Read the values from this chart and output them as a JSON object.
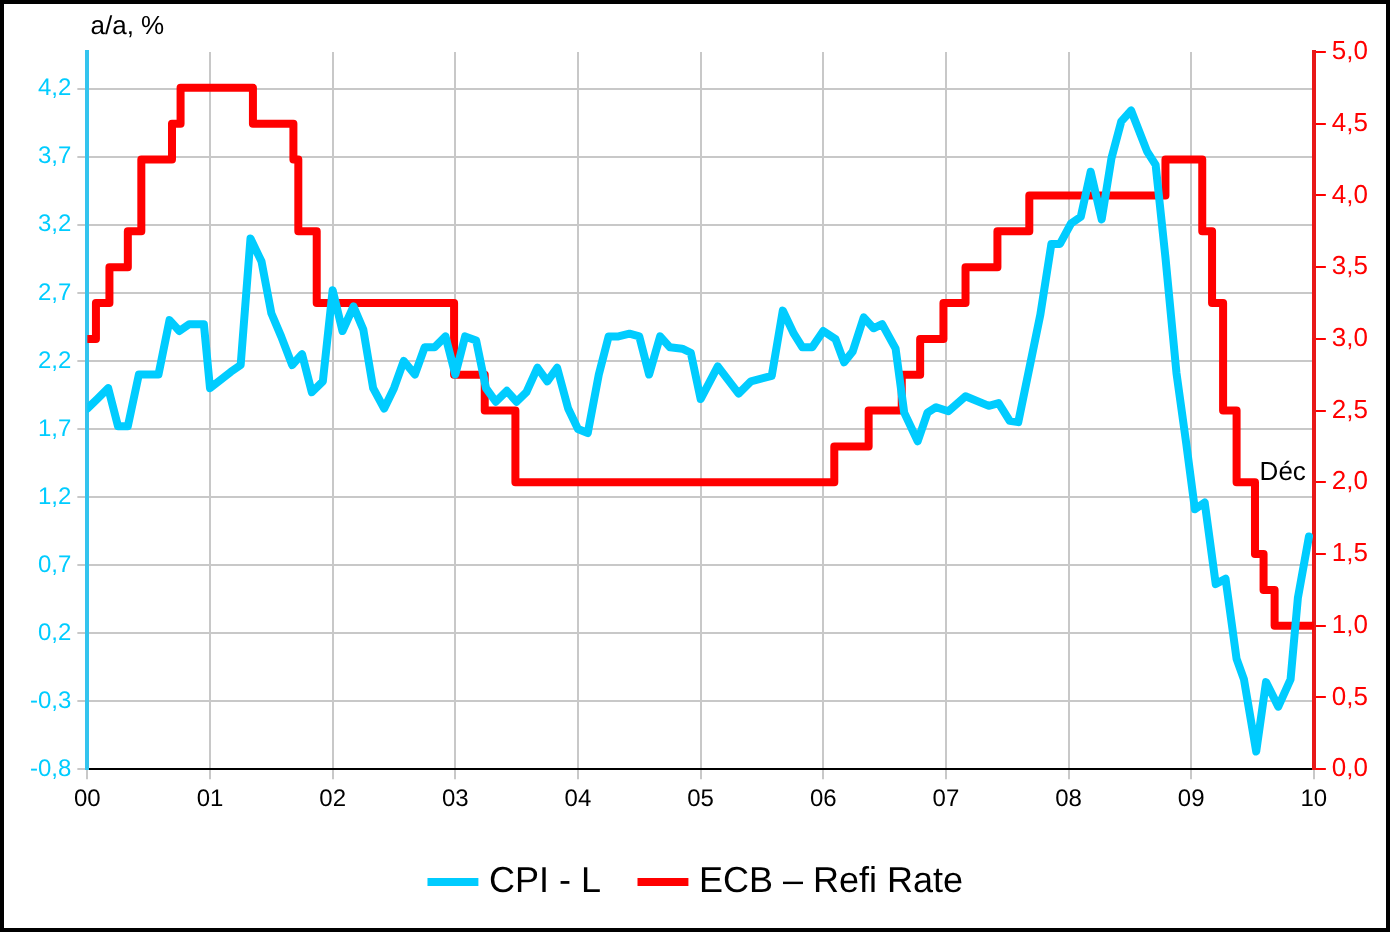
{
  "chart_data": {
    "type": "line",
    "ylabel": "a/a, %",
    "xlim": [
      0,
      10
    ],
    "xticks": [
      {
        "value": 0,
        "label": "00"
      },
      {
        "value": 1,
        "label": "01"
      },
      {
        "value": 2,
        "label": "02"
      },
      {
        "value": 3,
        "label": "03"
      },
      {
        "value": 4,
        "label": "04"
      },
      {
        "value": 5,
        "label": "05"
      },
      {
        "value": 6,
        "label": "06"
      },
      {
        "value": 7,
        "label": "07"
      },
      {
        "value": 8,
        "label": "08"
      },
      {
        "value": 9,
        "label": "09"
      },
      {
        "value": 10,
        "label": "10"
      }
    ],
    "ylim": [
      -0.8,
      4.47
    ],
    "yticks": [
      {
        "value": -0.8,
        "label": "-0,8"
      },
      {
        "value": -0.3,
        "label": "-0,3"
      },
      {
        "value": 0.2,
        "label": "0,2"
      },
      {
        "value": 0.7,
        "label": "0,7"
      },
      {
        "value": 1.2,
        "label": "1,2"
      },
      {
        "value": 1.7,
        "label": "1,7"
      },
      {
        "value": 2.2,
        "label": "2,2"
      },
      {
        "value": 2.7,
        "label": "2,7"
      },
      {
        "value": 3.2,
        "label": "3,2"
      },
      {
        "value": 3.7,
        "label": "3,7"
      },
      {
        "value": 4.2,
        "label": "4,2"
      }
    ],
    "y2lim": [
      0,
      5
    ],
    "y2ticks": [
      {
        "value": 0,
        "label": "0,0"
      },
      {
        "value": 0.5,
        "label": "0,5"
      },
      {
        "value": 1,
        "label": "1,0"
      },
      {
        "value": 1.5,
        "label": "1,5"
      },
      {
        "value": 2,
        "label": "2,0"
      },
      {
        "value": 2.5,
        "label": "2,5"
      },
      {
        "value": 3,
        "label": "3,0"
      },
      {
        "value": 3.5,
        "label": "3,5"
      },
      {
        "value": 4,
        "label": "4,0"
      },
      {
        "value": 4.5,
        "label": "4,5"
      },
      {
        "value": 5,
        "label": "5,0"
      }
    ],
    "grid": true,
    "legend": "bottom",
    "marker": "none",
    "line_style": "solid",
    "annotations": [
      "Déc"
    ],
    "series": [
      {
        "name": "CPI - L",
        "type": "line",
        "color": "#00ccff",
        "x": [
          0,
          0.08,
          0.17,
          0.25,
          0.33,
          0.42,
          0.58,
          0.67,
          0.75,
          0.83,
          0.95,
          1.0,
          1.17,
          1.25,
          1.33,
          1.42,
          1.5,
          1.58,
          1.67,
          1.75,
          1.83,
          1.92,
          2.0,
          2.08,
          2.17,
          2.25,
          2.33,
          2.42,
          2.5,
          2.58,
          2.67,
          2.75,
          2.83,
          2.92,
          3.0,
          3.08,
          3.17,
          3.25,
          3.33,
          3.42,
          3.5,
          3.58,
          3.67,
          3.75,
          3.83,
          3.92,
          4.0,
          4.08,
          4.17,
          4.25,
          4.33,
          4.42,
          4.5,
          4.58,
          4.67,
          4.75,
          4.85,
          4.92,
          5.0,
          5.14,
          5.31,
          5.41,
          5.58,
          5.67,
          5.76,
          5.83,
          5.91,
          6.0,
          6.1,
          6.17,
          6.24,
          6.33,
          6.41,
          6.48,
          6.59,
          6.66,
          6.77,
          6.85,
          6.92,
          7.02,
          7.16,
          7.35,
          7.43,
          7.52,
          7.59,
          7.77,
          7.86,
          7.93,
          8.02,
          8.1,
          8.18,
          8.27,
          8.35,
          8.43,
          8.51,
          8.64,
          8.71,
          8.79,
          8.88,
          8.96,
          9.03,
          9.11,
          9.2,
          9.28,
          9.37,
          9.43,
          9.53,
          9.61,
          9.71,
          9.81,
          9.87,
          9.96
        ],
        "values": [
          1.85,
          1.92,
          2.0,
          1.72,
          1.72,
          2.1,
          2.1,
          2.5,
          2.42,
          2.47,
          2.47,
          2.0,
          2.12,
          2.17,
          3.1,
          2.93,
          2.55,
          2.38,
          2.17,
          2.25,
          1.97,
          2.05,
          2.72,
          2.42,
          2.6,
          2.43,
          2.0,
          1.85,
          2.0,
          2.2,
          2.1,
          2.3,
          2.3,
          2.38,
          2.1,
          2.38,
          2.35,
          2.0,
          1.9,
          1.98,
          1.9,
          1.97,
          2.15,
          2.05,
          2.15,
          1.85,
          1.7,
          1.67,
          2.1,
          2.38,
          2.38,
          2.4,
          2.38,
          2.1,
          2.38,
          2.3,
          2.29,
          2.26,
          1.92,
          2.16,
          1.96,
          2.05,
          2.09,
          2.57,
          2.4,
          2.3,
          2.3,
          2.42,
          2.36,
          2.19,
          2.27,
          2.52,
          2.44,
          2.47,
          2.29,
          1.82,
          1.61,
          1.82,
          1.86,
          1.83,
          1.94,
          1.87,
          1.89,
          1.76,
          1.75,
          2.54,
          3.06,
          3.06,
          3.21,
          3.26,
          3.59,
          3.24,
          3.69,
          3.96,
          4.04,
          3.74,
          3.64,
          2.96,
          2.11,
          1.59,
          1.11,
          1.16,
          0.56,
          0.6,
          0.01,
          -0.14,
          -0.67,
          -0.16,
          -0.34,
          -0.14,
          0.46,
          0.91
        ]
      },
      {
        "name": "ECB – Refi Rate",
        "type": "step",
        "axis": "y2",
        "color": "#ff0000",
        "x": [
          0,
          0.07,
          0.18,
          0.33,
          0.44,
          0.69,
          0.76,
          1.35,
          1.68,
          1.72,
          1.87,
          2.99,
          3.24,
          3.49,
          6.09,
          6.37,
          6.64,
          6.79,
          6.98,
          7.16,
          7.42,
          7.68,
          8.79,
          9.09,
          9.17,
          9.26,
          9.37,
          9.52,
          9.59,
          9.68,
          10.0
        ],
        "values": [
          3.0,
          3.25,
          3.5,
          3.75,
          4.25,
          4.5,
          4.75,
          4.5,
          4.25,
          3.75,
          3.25,
          2.75,
          2.5,
          2.0,
          2.25,
          2.5,
          2.75,
          3.0,
          3.25,
          3.5,
          3.75,
          4.0,
          4.25,
          3.75,
          3.25,
          2.5,
          2.0,
          1.5,
          1.25,
          1.0,
          1.0
        ]
      }
    ]
  }
}
